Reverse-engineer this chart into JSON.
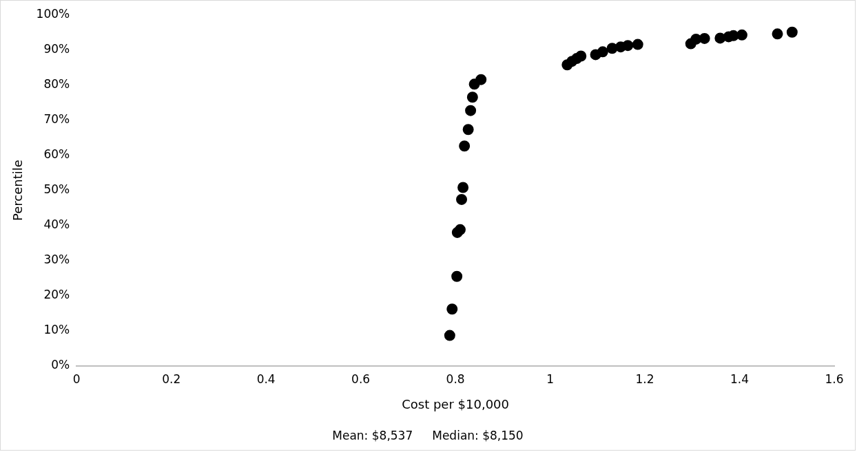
{
  "chart_data": {
    "type": "scatter",
    "xlabel": "Cost per $10,000",
    "ylabel": "Percentile",
    "annotations": [
      "Mean: $8,537",
      "Median: $8,150"
    ],
    "series": [
      {
        "color": "#000000",
        "x": [
          0.788,
          0.793,
          0.803,
          0.804,
          0.81,
          0.813,
          0.816,
          0.819,
          0.827,
          0.832,
          0.836,
          0.84,
          0.854,
          1.036,
          1.046,
          1.056,
          1.065,
          1.096,
          1.111,
          1.131,
          1.149,
          1.164,
          1.185,
          1.297,
          1.308,
          1.326,
          1.359,
          1.377,
          1.387,
          1.405,
          1.48,
          1.511
        ],
        "values": [
          8.7,
          16.2,
          25.5,
          38,
          38.8,
          47.4,
          50.8,
          62.6,
          67.3,
          72.7,
          76.5,
          80.2,
          81.5,
          85.7,
          86.7,
          87.5,
          88.2,
          88.6,
          89.4,
          90.4,
          90.8,
          91.2,
          91.5,
          91.7,
          93,
          93.2,
          93.3,
          93.7,
          94,
          94.2,
          94.5,
          95
        ]
      }
    ],
    "xlim": [
      0,
      1.6
    ],
    "xticks": [
      0,
      0.2,
      0.4,
      0.6,
      0.8,
      1,
      1.2,
      1.4,
      1.6
    ],
    "ylim": [
      0,
      100
    ],
    "yticks": [
      {
        "value": 0,
        "label": "0%"
      },
      {
        "value": 10,
        "label": "10%"
      },
      {
        "value": 20,
        "label": "20%"
      },
      {
        "value": 30,
        "label": "30%"
      },
      {
        "value": 40,
        "label": "40%"
      },
      {
        "value": 50,
        "label": "50%"
      },
      {
        "value": 60,
        "label": "60%"
      },
      {
        "value": 70,
        "label": "70%"
      },
      {
        "value": 80,
        "label": "80%"
      },
      {
        "value": 90,
        "label": "90%"
      },
      {
        "value": 100,
        "label": "100%"
      }
    ],
    "grid": false,
    "legend": false,
    "marker": "circle"
  }
}
